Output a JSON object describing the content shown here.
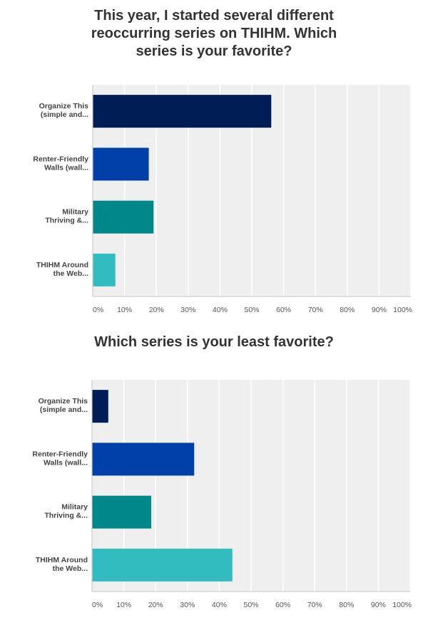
{
  "chart_data": [
    {
      "type": "bar",
      "orientation": "horizontal",
      "title": "This year, I started several different reoccurring series on THIHM. Which series is your favorite?",
      "title_lines": [
        "This year, I started several different",
        "reoccurring series on THIHM. Which",
        "series is your favorite?"
      ],
      "categories": [
        [
          "Organize This",
          "(simple and..."
        ],
        [
          "Renter-Friendly",
          "Walls (wall..."
        ],
        [
          "Military",
          "Thriving &..."
        ],
        [
          "THIHM Around",
          "the Web..."
        ]
      ],
      "values": [
        56,
        17.5,
        19,
        7
      ],
      "colors": [
        "#001e55",
        "#0040a8",
        "#00878a",
        "#33bcc0"
      ],
      "xlim": [
        0,
        100
      ],
      "xticks": [
        "0%",
        "10%",
        "20%",
        "30%",
        "40%",
        "50%",
        "60%",
        "70%",
        "80%",
        "90%",
        "100%"
      ],
      "grid": true,
      "xlabel": "",
      "ylabel": ""
    },
    {
      "type": "bar",
      "orientation": "horizontal",
      "title": "Which series is your least favorite?",
      "categories": [
        [
          "Organize This",
          "(simple and..."
        ],
        [
          "Renter-Friendly",
          "Walls (wall..."
        ],
        [
          "Military",
          "Thriving &..."
        ],
        [
          "THIHM Around",
          "the Web..."
        ]
      ],
      "values": [
        5,
        32,
        18.5,
        44
      ],
      "colors": [
        "#001e55",
        "#0040a8",
        "#00878a",
        "#33bcc0"
      ],
      "xlim": [
        0,
        100
      ],
      "xticks": [
        "0%",
        "10%",
        "20%",
        "30%",
        "40%",
        "50%",
        "60%",
        "70%",
        "80%",
        "90%",
        "100%"
      ],
      "grid": true,
      "xlabel": "",
      "ylabel": ""
    }
  ],
  "colors": {
    "plot_bg": "#efefef",
    "grid": "#ffffff",
    "axis": "#d6d6d6",
    "title": "#333333"
  }
}
